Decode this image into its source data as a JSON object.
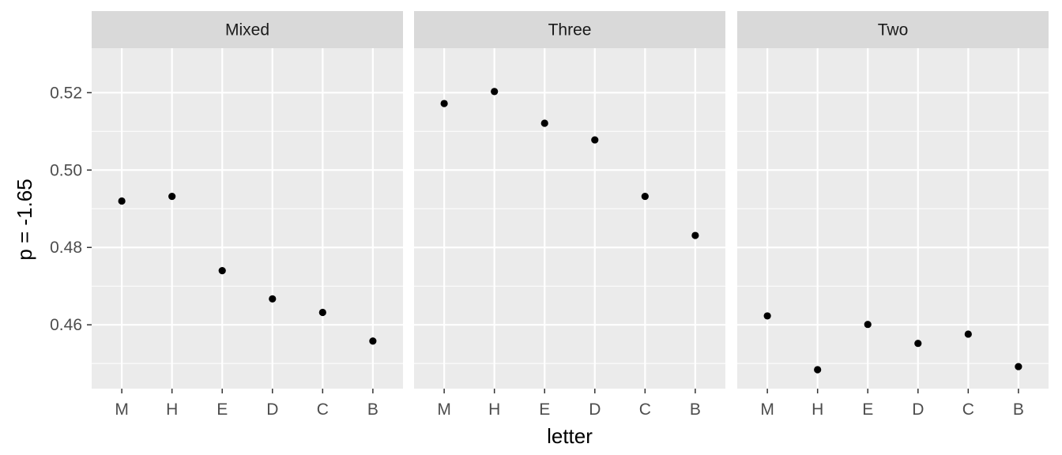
{
  "chart_data": {
    "type": "scatter",
    "facet_by": "panel",
    "xlabel": "letter",
    "ylabel": "p = -1.65",
    "categories": [
      "M",
      "H",
      "E",
      "D",
      "C",
      "B"
    ],
    "ylim": [
      0.4435,
      0.5315
    ],
    "yticks": [
      0.46,
      0.48,
      0.5,
      0.52
    ],
    "ytick_labels": [
      "0.46",
      "0.48",
      "0.50",
      "0.52"
    ],
    "grid": true,
    "point_color": "#000000",
    "panel_background": "#ebebeb",
    "strip_background": "#d9d9d9",
    "grid_color": "#ffffff",
    "panels": [
      {
        "name": "Mixed",
        "values": [
          0.492,
          0.4932,
          0.474,
          0.4667,
          0.4632,
          0.4558
        ]
      },
      {
        "name": "Three",
        "values": [
          0.5172,
          0.5203,
          0.5121,
          0.5078,
          0.4932,
          0.4831
        ]
      },
      {
        "name": "Two",
        "values": [
          0.4623,
          0.4484,
          0.4601,
          0.4552,
          0.4576,
          0.4492
        ]
      }
    ]
  }
}
